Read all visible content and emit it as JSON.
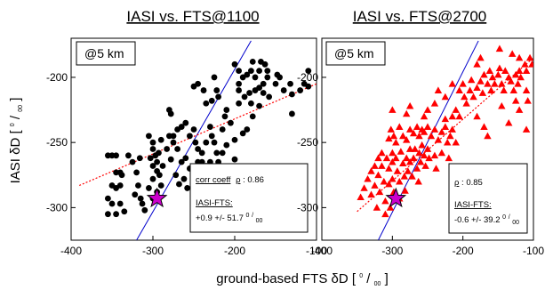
{
  "chart_data": [
    {
      "type": "scatter",
      "title": "IASI vs. FTS@1100",
      "ylabel": "IASI δD [⁰/₀₀]",
      "xlim": [
        -400,
        -100
      ],
      "ylim": [
        -325,
        -170
      ],
      "xticks": [
        "-400",
        "-300",
        "-200",
        "-100"
      ],
      "yticks": [
        "-300",
        "-250",
        "-200"
      ],
      "altitude_label": "@5 km",
      "stats": {
        "corr_label": "corr coeff",
        "rho_symbol": "ρ",
        "corr_value": ": 0.86",
        "diff_label": "IASI-FTS:",
        "diff_value": "+0.9 +/- 51.7 ",
        "unit_num": "0",
        "unit_den": "00"
      },
      "marker": "circle",
      "marker_color": "#000000",
      "fit_line_color": "#ff0000",
      "one_to_one_color": "#0000cc",
      "highlight_color": "#cc00cc",
      "one_to_one": [
        [
          -320,
          -325
        ],
        [
          -180,
          -172
        ]
      ],
      "fit_line": [
        [
          -390,
          -283
        ],
        [
          -100,
          -205
        ]
      ],
      "highlight_point": [
        -295,
        -293
      ],
      "points": [
        [
          -355,
          -260
        ],
        [
          -350,
          -260
        ],
        [
          -345,
          -260
        ],
        [
          -340,
          -273
        ],
        [
          -345,
          -273
        ],
        [
          -350,
          -283
        ],
        [
          -355,
          -293
        ],
        [
          -350,
          -297
        ],
        [
          -345,
          -305
        ],
        [
          -355,
          -305
        ],
        [
          -340,
          -283
        ],
        [
          -338,
          -275
        ],
        [
          -345,
          -285
        ],
        [
          -340,
          -297
        ],
        [
          -335,
          -303
        ],
        [
          -330,
          -260
        ],
        [
          -325,
          -265
        ],
        [
          -320,
          -273
        ],
        [
          -318,
          -283
        ],
        [
          -315,
          -293
        ],
        [
          -313,
          -297
        ],
        [
          -310,
          -302
        ],
        [
          -322,
          -290
        ],
        [
          -316,
          -262
        ],
        [
          -305,
          -245
        ],
        [
          -300,
          -250
        ],
        [
          -300,
          -255
        ],
        [
          -297,
          -260
        ],
        [
          -295,
          -265
        ],
        [
          -300,
          -268
        ],
        [
          -295,
          -272
        ],
        [
          -292,
          -275
        ],
        [
          -300,
          -278
        ],
        [
          -290,
          -283
        ],
        [
          -305,
          -285
        ],
        [
          -295,
          -288
        ],
        [
          -300,
          -293
        ],
        [
          -290,
          -248
        ],
        [
          -293,
          -258
        ],
        [
          -288,
          -268
        ],
        [
          -303,
          -262
        ],
        [
          -280,
          -245
        ],
        [
          -275,
          -245
        ],
        [
          -270,
          -240
        ],
        [
          -265,
          -238
        ],
        [
          -260,
          -235
        ],
        [
          -255,
          -245
        ],
        [
          -250,
          -240
        ],
        [
          -248,
          -250
        ],
        [
          -245,
          -255
        ],
        [
          -240,
          -258
        ],
        [
          -235,
          -250
        ],
        [
          -230,
          -238
        ],
        [
          -228,
          -245
        ],
        [
          -225,
          -250
        ],
        [
          -222,
          -258
        ],
        [
          -215,
          -240
        ],
        [
          -212,
          -230
        ],
        [
          -210,
          -225
        ],
        [
          -210,
          -252
        ],
        [
          -205,
          -235
        ],
        [
          -200,
          -248
        ],
        [
          -200,
          -263
        ],
        [
          -195,
          -220
        ],
        [
          -190,
          -243
        ],
        [
          -185,
          -240
        ],
        [
          -182,
          -212
        ],
        [
          -180,
          -220
        ],
        [
          -178,
          -230
        ],
        [
          -275,
          -250
        ],
        [
          -270,
          -255
        ],
        [
          -265,
          -265
        ],
        [
          -260,
          -262
        ],
        [
          -255,
          -270
        ],
        [
          -250,
          -272
        ],
        [
          -245,
          -265
        ],
        [
          -240,
          -265
        ],
        [
          -235,
          -268
        ],
        [
          -230,
          -265
        ],
        [
          -225,
          -275
        ],
        [
          -220,
          -265
        ],
        [
          -215,
          -258
        ],
        [
          -283,
          -255
        ],
        [
          -278,
          -263
        ],
        [
          -272,
          -275
        ],
        [
          -268,
          -282
        ],
        [
          -262,
          -278
        ],
        [
          -258,
          -285
        ],
        [
          -280,
          -225
        ],
        [
          -278,
          -228
        ],
        [
          -250,
          -207
        ],
        [
          -245,
          -205
        ],
        [
          -238,
          -210
        ],
        [
          -235,
          -220
        ],
        [
          -228,
          -218
        ],
        [
          -225,
          -200
        ],
        [
          -222,
          -210
        ],
        [
          -220,
          -215
        ],
        [
          -200,
          -190
        ],
        [
          -195,
          -195
        ],
        [
          -195,
          -205
        ],
        [
          -190,
          -200
        ],
        [
          -185,
          -198
        ],
        [
          -180,
          -195
        ],
        [
          -178,
          -188
        ],
        [
          -175,
          -200
        ],
        [
          -170,
          -195
        ],
        [
          -168,
          -188
        ],
        [
          -165,
          -205
        ],
        [
          -163,
          -190
        ],
        [
          -160,
          -195
        ],
        [
          -160,
          -200
        ],
        [
          -158,
          -215
        ],
        [
          -150,
          -205
        ],
        [
          -148,
          -198
        ],
        [
          -145,
          -200
        ],
        [
          -140,
          -210
        ],
        [
          -132,
          -205
        ],
        [
          -130,
          -213
        ],
        [
          -130,
          -228
        ],
        [
          -120,
          -210
        ],
        [
          -115,
          -205
        ],
        [
          -110,
          -195
        ],
        [
          -110,
          -207
        ],
        [
          -170,
          -222
        ],
        [
          -165,
          -212
        ],
        [
          -195,
          -210
        ],
        [
          -188,
          -215
        ],
        [
          -175,
          -210
        ],
        [
          -170,
          -208
        ]
      ]
    },
    {
      "type": "scatter",
      "title": "IASI vs. FTS@2700",
      "xlim": [
        -400,
        -100
      ],
      "ylim": [
        -325,
        -170
      ],
      "xticks": [
        "-400",
        "-300",
        "-200",
        "-100"
      ],
      "yticks": [
        "-300",
        "-250",
        "-200"
      ],
      "altitude_label": "@5 km",
      "stats": {
        "corr_label": "",
        "rho_symbol": "ρ",
        "corr_value": ": 0.85",
        "diff_label": "IASI-FTS:",
        "diff_value": "-0.6 +/- 39.2 ",
        "unit_num": "0",
        "unit_den": "00"
      },
      "marker": "triangle",
      "marker_color": "#ff0000",
      "fit_line_color": "#ff0000",
      "one_to_one_color": "#0000cc",
      "highlight_color": "#cc00cc",
      "one_to_one": [
        [
          -320,
          -325
        ],
        [
          -178,
          -172
        ]
      ],
      "fit_line": [
        [
          -350,
          -303
        ],
        [
          -100,
          -185
        ]
      ],
      "highlight_point": [
        -295,
        -293
      ],
      "points": [
        [
          -345,
          -292
        ],
        [
          -340,
          -285
        ],
        [
          -335,
          -278
        ],
        [
          -330,
          -272
        ],
        [
          -330,
          -290
        ],
        [
          -325,
          -268
        ],
        [
          -325,
          -283
        ],
        [
          -322,
          -300
        ],
        [
          -320,
          -262
        ],
        [
          -320,
          -275
        ],
        [
          -318,
          -288
        ],
        [
          -315,
          -258
        ],
        [
          -315,
          -268
        ],
        [
          -312,
          -280
        ],
        [
          -310,
          -295
        ],
        [
          -310,
          -305
        ],
        [
          -308,
          -262
        ],
        [
          -305,
          -270
        ],
        [
          -305,
          -282
        ],
        [
          -303,
          -300
        ],
        [
          -300,
          -258
        ],
        [
          -300,
          -265
        ],
        [
          -300,
          -278
        ],
        [
          -298,
          -288
        ],
        [
          -295,
          -262
        ],
        [
          -293,
          -272
        ],
        [
          -290,
          -280
        ],
        [
          -290,
          -293
        ],
        [
          -288,
          -257
        ],
        [
          -285,
          -266
        ],
        [
          -283,
          -276
        ],
        [
          -282,
          -287
        ],
        [
          -280,
          -262
        ],
        [
          -278,
          -272
        ],
        [
          -275,
          -255
        ],
        [
          -275,
          -265
        ],
        [
          -272,
          -276
        ],
        [
          -270,
          -262
        ],
        [
          -268,
          -255
        ],
        [
          -265,
          -270
        ],
        [
          -263,
          -280
        ],
        [
          -262,
          -258
        ],
        [
          -260,
          -265
        ],
        [
          -258,
          -252
        ],
        [
          -255,
          -260
        ],
        [
          -253,
          -268
        ],
        [
          -250,
          -255
        ],
        [
          -248,
          -262
        ],
        [
          -305,
          -247
        ],
        [
          -302,
          -240
        ],
        [
          -298,
          -245
        ],
        [
          -295,
          -250
        ],
        [
          -290,
          -238
        ],
        [
          -285,
          -245
        ],
        [
          -280,
          -248
        ],
        [
          -275,
          -240
        ],
        [
          -270,
          -243
        ],
        [
          -265,
          -238
        ],
        [
          -262,
          -245
        ],
        [
          -258,
          -240
        ],
        [
          -255,
          -242
        ],
        [
          -250,
          -238
        ],
        [
          -245,
          -245
        ],
        [
          -240,
          -240
        ],
        [
          -235,
          -248
        ],
        [
          -230,
          -242
        ],
        [
          -225,
          -238
        ],
        [
          -222,
          -250
        ],
        [
          -218,
          -245
        ],
        [
          -215,
          -240
        ],
        [
          -300,
          -225
        ],
        [
          -280,
          -228
        ],
        [
          -275,
          -222
        ],
        [
          -255,
          -230
        ],
        [
          -250,
          -225
        ],
        [
          -240,
          -220
        ],
        [
          -225,
          -232
        ],
        [
          -215,
          -230
        ],
        [
          -210,
          -225
        ],
        [
          -205,
          -230
        ],
        [
          -235,
          -210
        ],
        [
          -225,
          -215
        ],
        [
          -215,
          -205
        ],
        [
          -205,
          -210
        ],
        [
          -200,
          -205
        ],
        [
          -198,
          -215
        ],
        [
          -195,
          -220
        ],
        [
          -190,
          -210
        ],
        [
          -188,
          -202
        ],
        [
          -185,
          -215
        ],
        [
          -180,
          -208
        ],
        [
          -175,
          -203
        ],
        [
          -172,
          -212
        ],
        [
          -170,
          -198
        ],
        [
          -165,
          -205
        ],
        [
          -162,
          -195
        ],
        [
          -160,
          -210
        ],
        [
          -158,
          -200
        ],
        [
          -155,
          -205
        ],
        [
          -150,
          -198
        ],
        [
          -148,
          -193
        ],
        [
          -145,
          -205
        ],
        [
          -142,
          -210
        ],
        [
          -140,
          -195
        ],
        [
          -135,
          -200
        ],
        [
          -132,
          -203
        ],
        [
          -128,
          -210
        ],
        [
          -125,
          -198
        ],
        [
          -122,
          -205
        ],
        [
          -120,
          -195
        ],
        [
          -118,
          -200
        ],
        [
          -112,
          -190
        ],
        [
          -110,
          -195
        ],
        [
          -105,
          -185
        ],
        [
          -102,
          -190
        ],
        [
          -180,
          -190
        ],
        [
          -175,
          -185
        ],
        [
          -148,
          -178
        ],
        [
          -130,
          -182
        ],
        [
          -120,
          -185
        ],
        [
          -180,
          -230
        ],
        [
          -170,
          -238
        ],
        [
          -165,
          -245
        ],
        [
          -145,
          -222
        ],
        [
          -135,
          -235
        ],
        [
          -125,
          -218
        ],
        [
          -120,
          -225
        ],
        [
          -110,
          -240
        ],
        [
          -110,
          -210
        ],
        [
          -108,
          -218
        ],
        [
          -240,
          -260
        ],
        [
          -230,
          -258
        ],
        [
          -220,
          -262
        ],
        [
          -210,
          -250
        ],
        [
          -238,
          -270
        ]
      ]
    }
  ],
  "shared": {
    "xlabel": "ground-based FTS δD [",
    "xlabel_num": "0",
    "xlabel_den": "00",
    "xlabel_close": "]",
    "ylabel_prefix": "IASI δD [",
    "ylabel_num": "0",
    "ylabel_den": "00",
    "ylabel_close": "]"
  }
}
